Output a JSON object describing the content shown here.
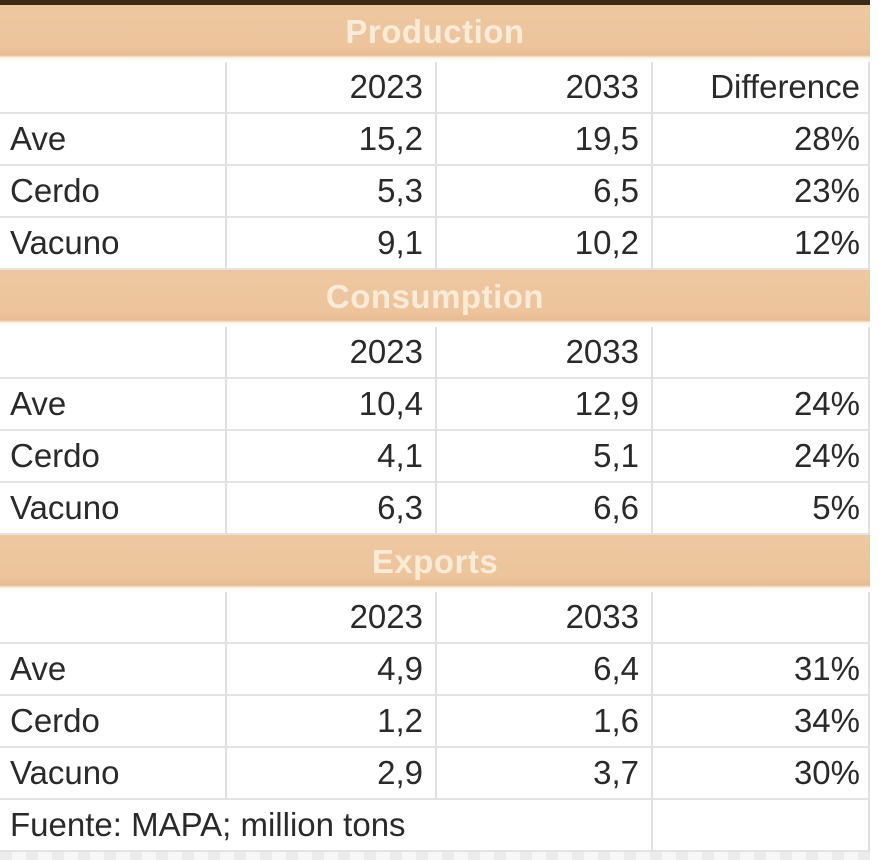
{
  "meta": {
    "kind": "spreadsheet-style data table",
    "units_note": "million tons",
    "accent_band_color": "#edc49c",
    "band_text_color": "#f8ecd8",
    "top_border_color": "#3d2a16",
    "grid_color": "#e0e0e0",
    "text_color": "#2a2a2a"
  },
  "table": {
    "sections": [
      {
        "title": "Production",
        "year1_header": "2023",
        "year2_header": "2033",
        "diff_header": "Difference",
        "rows": [
          {
            "label": "Ave",
            "v2023": "15,2",
            "v2033": "19,5",
            "diff": "28%"
          },
          {
            "label": "Cerdo",
            "v2023": "5,3",
            "v2033": "6,5",
            "diff": "23%"
          },
          {
            "label": "Vacuno",
            "v2023": "9,1",
            "v2033": "10,2",
            "diff": "12%"
          }
        ]
      },
      {
        "title": "Consumption",
        "year1_header": "2023",
        "year2_header": "2033",
        "diff_header": "",
        "rows": [
          {
            "label": "Ave",
            "v2023": "10,4",
            "v2033": "12,9",
            "diff": "24%"
          },
          {
            "label": "Cerdo",
            "v2023": "4,1",
            "v2033": "5,1",
            "diff": "24%"
          },
          {
            "label": "Vacuno",
            "v2023": "6,3",
            "v2033": "6,6",
            "diff": "5%"
          }
        ]
      },
      {
        "title": "Exports",
        "year1_header": "2023",
        "year2_header": "2033",
        "diff_header": "",
        "rows": [
          {
            "label": "Ave",
            "v2023": "4,9",
            "v2033": "6,4",
            "diff": "31%"
          },
          {
            "label": "Cerdo",
            "v2023": "1,2",
            "v2033": "1,6",
            "diff": "34%"
          },
          {
            "label": "Vacuno",
            "v2023": "2,9",
            "v2033": "3,7",
            "diff": "30%"
          }
        ]
      }
    ],
    "footer": {
      "source_note": "Fuente: MAPA; million tons",
      "empty_cell": ""
    }
  }
}
